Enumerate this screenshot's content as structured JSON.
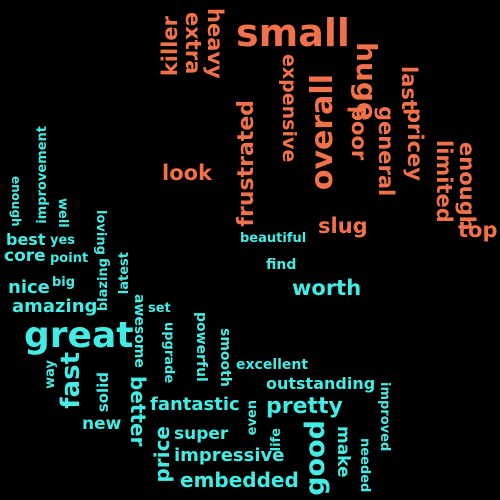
{
  "colors": {
    "background": "#000000",
    "negative": "#f0714a",
    "positive": "#43ece4"
  },
  "words": {
    "negative": {
      "small": "small",
      "killer": "killer",
      "extra": "extra",
      "heavy": "heavy",
      "huge": "huge",
      "expensive": "expensive",
      "overall": "overall",
      "poor": "poor",
      "general": "general",
      "last": "last",
      "pricey": "pricey",
      "limited": "limited",
      "enough": "enough",
      "look": "look",
      "frustrated": "frustrated",
      "slug": "slug",
      "top": "top"
    },
    "positive": {
      "improvement": "improvement",
      "enough": "enough",
      "well": "well",
      "loving": "loving",
      "best": "best",
      "yes": "yes",
      "core": "core",
      "point": "point",
      "latest": "latest",
      "blazing": "blazing",
      "big": "big",
      "nice": "nice",
      "amazing": "amazing",
      "great": "great",
      "set": "set",
      "upgrade": "upgrade",
      "awesome": "awesome",
      "powerful": "powerful",
      "smooth": "smooth",
      "fast": "fast",
      "way": "way",
      "solid": "solid",
      "better": "better",
      "new": "new",
      "price": "price",
      "fantastic": "fantastic",
      "super": "super",
      "impressive": "impressive",
      "embedded": "embedded",
      "even": "even",
      "life": "life",
      "pretty": "pretty",
      "outstanding": "outstanding",
      "excellent": "excellent",
      "good": "good",
      "make": "make",
      "needed": "needed",
      "improved": "improved",
      "worth": "worth",
      "find": "find",
      "beautiful": "beautiful"
    }
  }
}
